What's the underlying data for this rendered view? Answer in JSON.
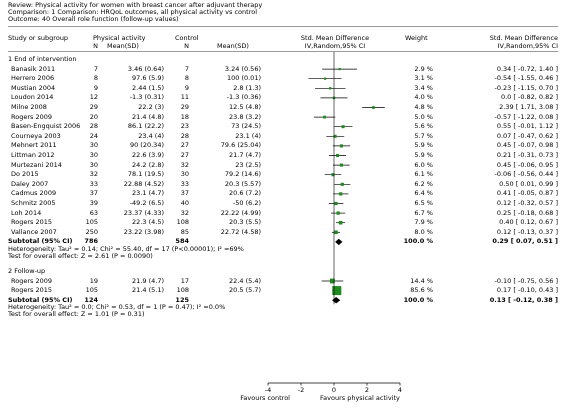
{
  "header": {
    "review": "Review:  Physical activity for women with breast cancer after adjuvant therapy",
    "comparison": "Comparison:  1 Comparison: HRQoL outcomes, all physical activity vs control",
    "outcome": "Outcome:  40 Overall role function (follow-up values)"
  },
  "columns": {
    "study": "Study or subgroup",
    "pa_group": "Physical activity",
    "pa_n": "N",
    "pa_mean": "Mean(SD)",
    "ctl_group": "Control",
    "ctl_n": "N",
    "ctl_mean": "Mean(SD)",
    "smd": "Std. Mean Difference",
    "smd_method": "IV,Random,95% CI",
    "weight": "Weight",
    "smd2": "Std. Mean Difference",
    "smd2_method": "IV,Random,95% CI"
  },
  "chart_data": {
    "type": "forest",
    "xlim": [
      -4,
      4
    ],
    "ticks": [
      "-4",
      "-2",
      "0",
      "2",
      "4"
    ],
    "xlabel_left": "Favours control",
    "xlabel_right": "Favours physical activity",
    "subgroups": [
      {
        "title": "1 End of intervention",
        "studies": [
          {
            "name": "Banasik 2011",
            "pa_n": "7",
            "pa_mean": "3.46 (0.64)",
            "ctl_n": "7",
            "ctl_mean": "3.24 (0.56)",
            "weight": "2.9 %",
            "ci_text": "0.34 [ -0.72, 1.40 ]",
            "est": 0.34,
            "lo": -0.72,
            "hi": 1.4
          },
          {
            "name": "Herrero 2006",
            "pa_n": "8",
            "pa_mean": "97.6 (5.9)",
            "ctl_n": "8",
            "ctl_mean": "100 (0.01)",
            "weight": "3.1 %",
            "ci_text": "-0.54 [ -1.55, 0.46 ]",
            "est": -0.54,
            "lo": -1.55,
            "hi": 0.46
          },
          {
            "name": "Mustian 2004",
            "pa_n": "9",
            "pa_mean": "2.44 (1.5)",
            "ctl_n": "9",
            "ctl_mean": "2.8 (1.3)",
            "weight": "3.4 %",
            "ci_text": "-0.23 [ -1.15, 0.70 ]",
            "est": -0.23,
            "lo": -1.15,
            "hi": 0.7
          },
          {
            "name": "Loudon 2014",
            "pa_n": "12",
            "pa_mean": "-1.3 (0.31)",
            "ctl_n": "11",
            "ctl_mean": "-1.3 (0.36)",
            "weight": "4.0 %",
            "ci_text": "0.0 [ -0.82, 0.82 ]",
            "est": 0.0,
            "lo": -0.82,
            "hi": 0.82
          },
          {
            "name": "Milne 2008",
            "pa_n": "29",
            "pa_mean": "22.2 (3)",
            "ctl_n": "29",
            "ctl_mean": "12.5 (4.8)",
            "weight": "4.8 %",
            "ci_text": "2.39 [ 1.71, 3.08 ]",
            "est": 2.39,
            "lo": 1.71,
            "hi": 3.08
          },
          {
            "name": "Rogers 2009",
            "pa_n": "20",
            "pa_mean": "21.4 (4.8)",
            "ctl_n": "18",
            "ctl_mean": "23.8 (3.2)",
            "weight": "5.0 %",
            "ci_text": "-0.57 [ -1.22, 0.08 ]",
            "est": -0.57,
            "lo": -1.22,
            "hi": 0.08
          },
          {
            "name": "Basen-Engquist 2006",
            "pa_n": "28",
            "pa_mean": "86.1 (22.2)",
            "ctl_n": "23",
            "ctl_mean": "73 (24.5)",
            "weight": "5.6 %",
            "ci_text": "0.55 [ -0.01, 1.12 ]",
            "est": 0.55,
            "lo": -0.01,
            "hi": 1.12
          },
          {
            "name": "Courneya 2003",
            "pa_n": "24",
            "pa_mean": "23.4 (4)",
            "ctl_n": "28",
            "ctl_mean": "23.1 (4)",
            "weight": "5.7 %",
            "ci_text": "0.07 [ -0.47, 0.62 ]",
            "est": 0.07,
            "lo": -0.47,
            "hi": 0.62
          },
          {
            "name": "Mehnert 2011",
            "pa_n": "30",
            "pa_mean": "90 (20.34)",
            "ctl_n": "27",
            "ctl_mean": "79.6 (25.04)",
            "weight": "5.9 %",
            "ci_text": "0.45 [ -0.07, 0.98 ]",
            "est": 0.45,
            "lo": -0.07,
            "hi": 0.98
          },
          {
            "name": "Littman 2012",
            "pa_n": "30",
            "pa_mean": "22.6 (3.9)",
            "ctl_n": "27",
            "ctl_mean": "21.7 (4.7)",
            "weight": "5.9 %",
            "ci_text": "0.21 [ -0.31, 0.73 ]",
            "est": 0.21,
            "lo": -0.31,
            "hi": 0.73
          },
          {
            "name": "Murtezani 2014",
            "pa_n": "30",
            "pa_mean": "24.2 (2.8)",
            "ctl_n": "32",
            "ctl_mean": "23 (2.5)",
            "weight": "6.0 %",
            "ci_text": "0.45 [ -0.06, 0.95 ]",
            "est": 0.45,
            "lo": -0.06,
            "hi": 0.95
          },
          {
            "name": "Do 2015",
            "pa_n": "32",
            "pa_mean": "78.1 (19.5)",
            "ctl_n": "30",
            "ctl_mean": "79.2 (14.6)",
            "weight": "6.1 %",
            "ci_text": "-0.06 [ -0.56, 0.44 ]",
            "est": -0.06,
            "lo": -0.56,
            "hi": 0.44
          },
          {
            "name": "Daley 2007",
            "pa_n": "33",
            "pa_mean": "22.88 (4.52)",
            "ctl_n": "33",
            "ctl_mean": "20.3 (5.57)",
            "weight": "6.2 %",
            "ci_text": "0.50 [ 0.01, 0.99 ]",
            "est": 0.5,
            "lo": 0.01,
            "hi": 0.99
          },
          {
            "name": "Cadmus 2009",
            "pa_n": "37",
            "pa_mean": "23.1 (4.7)",
            "ctl_n": "37",
            "ctl_mean": "20.6 (7.2)",
            "weight": "6.4 %",
            "ci_text": "0.41 [ -0.05, 0.87 ]",
            "est": 0.41,
            "lo": -0.05,
            "hi": 0.87
          },
          {
            "name": "Schmitz 2005",
            "pa_n": "39",
            "pa_mean": "-49.2 (6.5)",
            "ctl_n": "40",
            "ctl_mean": "-50 (6.2)",
            "weight": "6.5 %",
            "ci_text": "0.12 [ -0.32, 0.57 ]",
            "est": 0.12,
            "lo": -0.32,
            "hi": 0.57
          },
          {
            "name": "Loh 2014",
            "pa_n": "63",
            "pa_mean": "23.37 (4.33)",
            "ctl_n": "32",
            "ctl_mean": "22.22 (4.99)",
            "weight": "6.7 %",
            "ci_text": "0.25 [ -0.18, 0.68 ]",
            "est": 0.25,
            "lo": -0.18,
            "hi": 0.68
          },
          {
            "name": "Rogers 2015",
            "pa_n": "105",
            "pa_mean": "22.3 (4.5)",
            "ctl_n": "108",
            "ctl_mean": "20.3 (5.5)",
            "weight": "7.9 %",
            "ci_text": "0.40 [ 0.12, 0.67 ]",
            "est": 0.4,
            "lo": 0.12,
            "hi": 0.67
          },
          {
            "name": "Vallance 2007",
            "pa_n": "250",
            "pa_mean": "23.22 (3.98)",
            "ctl_n": "85",
            "ctl_mean": "22.72 (4.58)",
            "weight": "8.0 %",
            "ci_text": "0.12 [ -0.13, 0.37 ]",
            "est": 0.12,
            "lo": -0.13,
            "hi": 0.37
          }
        ],
        "subtotal": {
          "label": "Subtotal (95% CI)",
          "pa_n": "786",
          "ctl_n": "584",
          "weight": "100.0 %",
          "ci_text": "0.29 [ 0.07, 0.51 ]",
          "est": 0.29,
          "lo": 0.07,
          "hi": 0.51
        },
        "heterogeneity": "Heterogeneity: Tau² = 0.14; Chi² = 55.40, df = 17 (P<0.00001); I² =69%",
        "overall_effect": "Test for overall effect: Z = 2.61 (P = 0.0090)"
      },
      {
        "title": "2 Follow-up",
        "studies": [
          {
            "name": "Rogers 2009",
            "pa_n": "19",
            "pa_mean": "21.9 (4.7)",
            "ctl_n": "17",
            "ctl_mean": "22.4 (5.4)",
            "weight": "14.4 %",
            "ci_text": "-0.10 [ -0.75, 0.56 ]",
            "est": -0.1,
            "lo": -0.75,
            "hi": 0.56
          },
          {
            "name": "Rogers 2015",
            "pa_n": "105",
            "pa_mean": "21.4 (5.1)",
            "ctl_n": "108",
            "ctl_mean": "20.5 (5.7)",
            "weight": "85.6 %",
            "ci_text": "0.17 [ -0.10, 0.43 ]",
            "est": 0.17,
            "lo": -0.1,
            "hi": 0.43
          }
        ],
        "subtotal": {
          "label": "Subtotal (95% CI)",
          "pa_n": "124",
          "ctl_n": "125",
          "weight": "100.0 %",
          "ci_text": "0.13 [ -0.12, 0.38 ]",
          "est": 0.13,
          "lo": -0.12,
          "hi": 0.38
        },
        "heterogeneity": "Heterogeneity: Tau² = 0.0; Chi² = 0.53, df = 1 (P = 0.47); I² =0.0%",
        "overall_effect": "Test for overall effect: Z = 1.01 (P = 0.31)"
      }
    ],
    "colors": {
      "marker": "#1f8a1f",
      "line": "#000000",
      "rule": "#9a9a9a"
    }
  }
}
